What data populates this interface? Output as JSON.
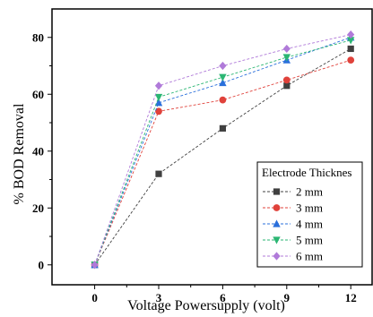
{
  "chart_data": {
    "type": "line",
    "xlabel": "Voltage Powersupply (volt)",
    "ylabel": "% BOD Removal",
    "x": [
      0,
      3,
      6,
      9,
      12
    ],
    "xticks": [
      "0",
      "3",
      "6",
      "9",
      "12"
    ],
    "yticks": [
      "0",
      "20",
      "40",
      "60",
      "80"
    ],
    "xlim": [
      -2,
      13
    ],
    "ylim": [
      -7,
      90
    ],
    "legend": {
      "title": "Electrode Thicknes",
      "placement": "bottom-right"
    },
    "series": [
      {
        "name": "2 mm",
        "values": [
          0,
          32,
          48,
          63,
          76
        ],
        "color": "#404040",
        "marker": "square"
      },
      {
        "name": "3 mm",
        "values": [
          0,
          54,
          58,
          65,
          72
        ],
        "color": "#e0423b",
        "marker": "circle"
      },
      {
        "name": "4 mm",
        "values": [
          0,
          57,
          64,
          72,
          80
        ],
        "color": "#2a6fdb",
        "marker": "triangle-up"
      },
      {
        "name": "5 mm",
        "values": [
          0,
          59,
          66,
          73,
          79
        ],
        "color": "#2bb673",
        "marker": "triangle-down"
      },
      {
        "name": "6 mm",
        "values": [
          0,
          63,
          70,
          76,
          81
        ],
        "color": "#b07ad9",
        "marker": "diamond"
      }
    ],
    "grid": false,
    "line_style": "dashed"
  }
}
